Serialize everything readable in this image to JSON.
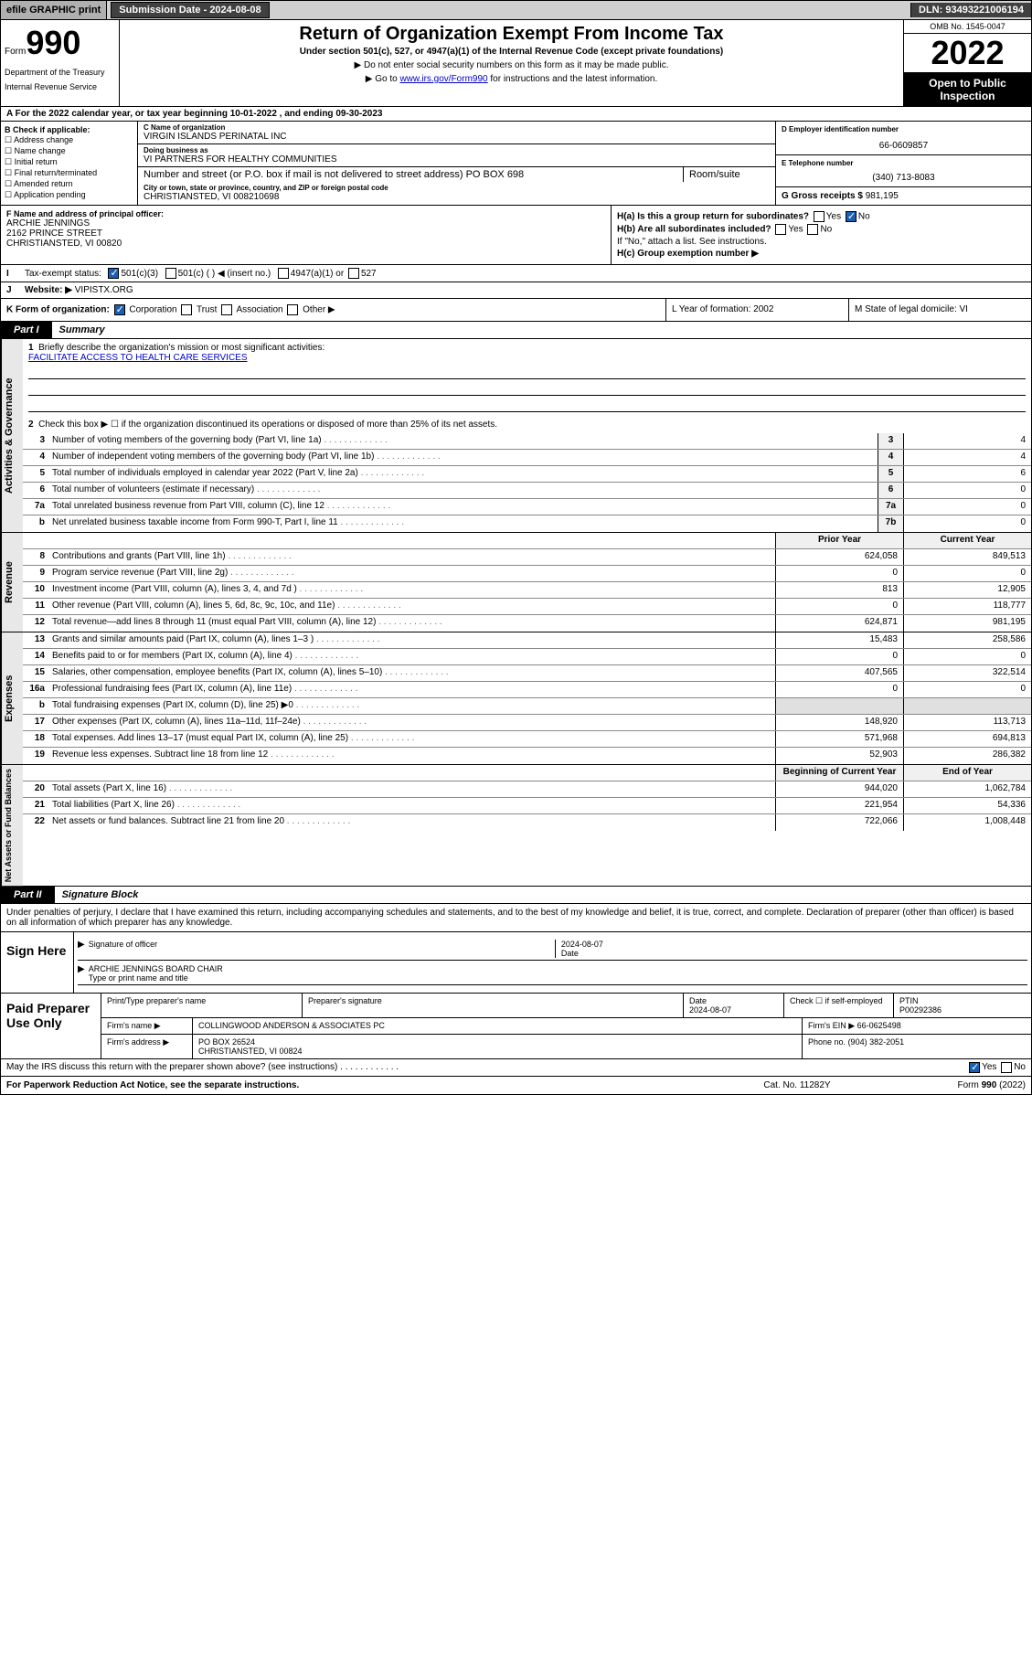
{
  "topbar": {
    "efile": "efile GRAPHIC print",
    "submission": "Submission Date - 2024-08-08",
    "dln": "DLN: 93493221006194"
  },
  "header": {
    "form_prefix": "Form",
    "form_num": "990",
    "dept": "Department of the Treasury",
    "irs": "Internal Revenue Service",
    "title": "Return of Organization Exempt From Income Tax",
    "sub": "Under section 501(c), 527, or 4947(a)(1) of the Internal Revenue Code (except private foundations)",
    "note1": "▶ Do not enter social security numbers on this form as it may be made public.",
    "note2_pre": "▶ Go to ",
    "note2_link": "www.irs.gov/Form990",
    "note2_post": " for instructions and the latest information.",
    "omb": "OMB No. 1545-0047",
    "year": "2022",
    "open": "Open to Public Inspection"
  },
  "row_a": "A For the 2022 calendar year, or tax year beginning 10-01-2022    , and ending 09-30-2023",
  "check_b": {
    "label": "B Check if applicable:",
    "items": [
      "Address change",
      "Name change",
      "Initial return",
      "Final return/terminated",
      "Amended return",
      "Application pending"
    ]
  },
  "col_c": {
    "name_lbl": "C Name of organization",
    "name": "VIRGIN ISLANDS PERINATAL INC",
    "dba_lbl": "Doing business as",
    "dba": "VI PARTNERS FOR HEALTHY COMMUNITIES",
    "addr_lbl": "Number and street (or P.O. box if mail is not delivered to street address)",
    "room_lbl": "Room/suite",
    "addr": "PO BOX 698",
    "city_lbl": "City or town, state or province, country, and ZIP or foreign postal code",
    "city": "CHRISTIANSTED, VI  008210698"
  },
  "col_d": {
    "ein_lbl": "D Employer identification number",
    "ein": "66-0609857",
    "tel_lbl": "E Telephone number",
    "tel": "(340) 713-8083",
    "gross_lbl": "G Gross receipts $",
    "gross": "981,195"
  },
  "sec_f": {
    "lbl": "F  Name and address of principal officer:",
    "name": "ARCHIE JENNINGS",
    "street": "2162 PRINCE STREET",
    "city": "CHRISTIANSTED, VI  00820",
    "ha": "H(a)  Is this a group return for subordinates?",
    "hb": "H(b)  Are all subordinates included?",
    "hb_note": "If \"No,\" attach a list. See instructions.",
    "hc": "H(c)  Group exemption number ▶",
    "yes": "Yes",
    "no": "No"
  },
  "row_i": {
    "lbl": "I",
    "text": "Tax-exempt status:",
    "opt1": "501(c)(3)",
    "opt2": "501(c) (  ) ◀ (insert no.)",
    "opt3": "4947(a)(1) or",
    "opt4": "527"
  },
  "row_j": {
    "lbl": "J",
    "text": "Website: ▶",
    "val": "VIPISTX.ORG"
  },
  "row_k": {
    "text": "K Form of organization:",
    "opts": [
      "Corporation",
      "Trust",
      "Association",
      "Other ▶"
    ],
    "l": "L Year of formation: 2002",
    "m": "M State of legal domicile: VI"
  },
  "part1": {
    "lbl": "Part I",
    "title": "Summary"
  },
  "summary": {
    "q1": "Briefly describe the organization's mission or most significant activities:",
    "q1_val": "FACILITATE ACCESS TO HEALTH CARE SERVICES",
    "q2": "Check this box ▶ ☐  if the organization discontinued its operations or disposed of more than 25% of its net assets.",
    "rows": [
      {
        "n": "3",
        "t": "Number of voting members of the governing body (Part VI, line 1a)",
        "box": "3",
        "v": "4"
      },
      {
        "n": "4",
        "t": "Number of independent voting members of the governing body (Part VI, line 1b)",
        "box": "4",
        "v": "4"
      },
      {
        "n": "5",
        "t": "Total number of individuals employed in calendar year 2022 (Part V, line 2a)",
        "box": "5",
        "v": "6"
      },
      {
        "n": "6",
        "t": "Total number of volunteers (estimate if necessary)",
        "box": "6",
        "v": "0"
      },
      {
        "n": "7a",
        "t": "Total unrelated business revenue from Part VIII, column (C), line 12",
        "box": "7a",
        "v": "0"
      },
      {
        "n": "b",
        "t": "Net unrelated business taxable income from Form 990-T, Part I, line 11",
        "box": "7b",
        "v": "0"
      }
    ]
  },
  "revenue": {
    "side": "Revenue",
    "hdr_prior": "Prior Year",
    "hdr_curr": "Current Year",
    "rows": [
      {
        "n": "8",
        "t": "Contributions and grants (Part VIII, line 1h)",
        "p": "624,058",
        "c": "849,513"
      },
      {
        "n": "9",
        "t": "Program service revenue (Part VIII, line 2g)",
        "p": "0",
        "c": "0"
      },
      {
        "n": "10",
        "t": "Investment income (Part VIII, column (A), lines 3, 4, and 7d )",
        "p": "813",
        "c": "12,905"
      },
      {
        "n": "11",
        "t": "Other revenue (Part VIII, column (A), lines 5, 6d, 8c, 9c, 10c, and 11e)",
        "p": "0",
        "c": "118,777"
      },
      {
        "n": "12",
        "t": "Total revenue—add lines 8 through 11 (must equal Part VIII, column (A), line 12)",
        "p": "624,871",
        "c": "981,195"
      }
    ]
  },
  "expenses": {
    "side": "Expenses",
    "rows": [
      {
        "n": "13",
        "t": "Grants and similar amounts paid (Part IX, column (A), lines 1–3 )",
        "p": "15,483",
        "c": "258,586"
      },
      {
        "n": "14",
        "t": "Benefits paid to or for members (Part IX, column (A), line 4)",
        "p": "0",
        "c": "0"
      },
      {
        "n": "15",
        "t": "Salaries, other compensation, employee benefits (Part IX, column (A), lines 5–10)",
        "p": "407,565",
        "c": "322,514"
      },
      {
        "n": "16a",
        "t": "Professional fundraising fees (Part IX, column (A), line 11e)",
        "p": "0",
        "c": "0"
      },
      {
        "n": "b",
        "t": "Total fundraising expenses (Part IX, column (D), line 25) ▶0",
        "p": "",
        "c": ""
      },
      {
        "n": "17",
        "t": "Other expenses (Part IX, column (A), lines 11a–11d, 11f–24e)",
        "p": "148,920",
        "c": "113,713"
      },
      {
        "n": "18",
        "t": "Total expenses. Add lines 13–17 (must equal Part IX, column (A), line 25)",
        "p": "571,968",
        "c": "694,813"
      },
      {
        "n": "19",
        "t": "Revenue less expenses. Subtract line 18 from line 12",
        "p": "52,903",
        "c": "286,382"
      }
    ]
  },
  "netassets": {
    "side": "Net Assets or Fund Balances",
    "hdr_beg": "Beginning of Current Year",
    "hdr_end": "End of Year",
    "rows": [
      {
        "n": "20",
        "t": "Total assets (Part X, line 16)",
        "p": "944,020",
        "c": "1,062,784"
      },
      {
        "n": "21",
        "t": "Total liabilities (Part X, line 26)",
        "p": "221,954",
        "c": "54,336"
      },
      {
        "n": "22",
        "t": "Net assets or fund balances. Subtract line 21 from line 20",
        "p": "722,066",
        "c": "1,008,448"
      }
    ]
  },
  "part2": {
    "lbl": "Part II",
    "title": "Signature Block",
    "text": "Under penalties of perjury, I declare that I have examined this return, including accompanying schedules and statements, and to the best of my knowledge and belief, it is true, correct, and complete. Declaration of preparer (other than officer) is based on all information of which preparer has any knowledge."
  },
  "sign": {
    "lbl": "Sign Here",
    "sig_lbl": "Signature of officer",
    "date_lbl": "Date",
    "date": "2024-08-07",
    "name": "ARCHIE JENNINGS  BOARD CHAIR",
    "name_lbl": "Type or print name and title"
  },
  "paid": {
    "lbl": "Paid Preparer Use Only",
    "h_name": "Print/Type preparer's name",
    "h_sig": "Preparer's signature",
    "h_date": "Date",
    "h_check": "Check ☐ if self-employed",
    "h_ptin": "PTIN",
    "date": "2024-08-07",
    "ptin": "P00292386",
    "firm_lbl": "Firm's name    ▶",
    "firm": "COLLINGWOOD ANDERSON & ASSOCIATES PC",
    "ein_lbl": "Firm's EIN ▶",
    "ein": "66-0625498",
    "addr_lbl": "Firm's address ▶",
    "addr1": "PO BOX 26524",
    "addr2": "CHRISTIANSTED, VI  00824",
    "phone_lbl": "Phone no.",
    "phone": "(904) 382-2051"
  },
  "may_irs": {
    "text": "May the IRS discuss this return with the preparer shown above? (see instructions)",
    "yes": "Yes",
    "no": "No"
  },
  "footer": {
    "left": "For Paperwork Reduction Act Notice, see the separate instructions.",
    "mid": "Cat. No. 11282Y",
    "right": "Form 990 (2022)"
  },
  "side_labels": {
    "gov": "Activities & Governance"
  }
}
